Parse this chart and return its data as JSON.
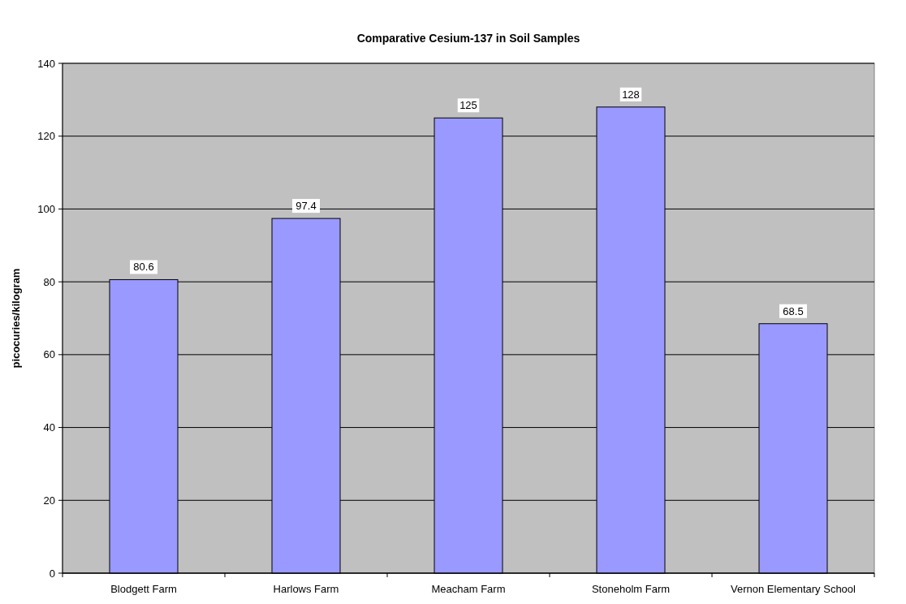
{
  "chart_data": {
    "type": "bar",
    "title": "Comparative Cesium-137 in Soil Samples",
    "ylabel": "picocuries/kilogram",
    "categories": [
      "Blodgett Farm",
      "Harlows Farm",
      "Meacham Farm",
      "Stoneholm Farm",
      "Vernon Elementary School"
    ],
    "values": [
      80.6,
      97.4,
      125,
      128,
      68.5
    ],
    "color": "#9999ff",
    "ylim": [
      0,
      140
    ],
    "yticks": [
      0,
      20,
      40,
      60,
      80,
      100,
      120,
      140
    ],
    "grid": "y",
    "data_labels": true
  }
}
